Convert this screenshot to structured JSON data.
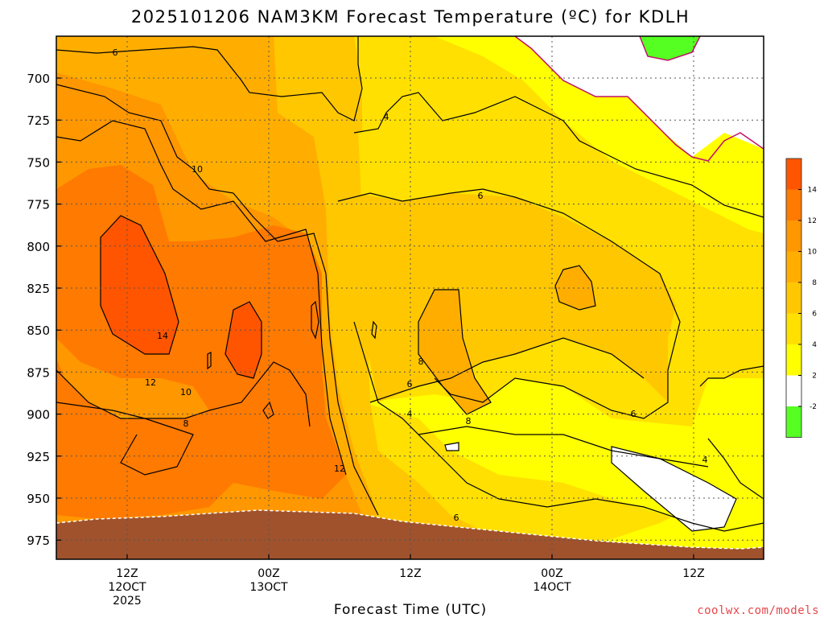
{
  "chart_data": {
    "type": "heatmap",
    "title": "2025101206 NAM3KM Forecast Temperature (ºC) for KDLH",
    "xlabel": "Forecast Time (UTC)",
    "credit": "coolwx.com/models",
    "y_ticks": [
      "700",
      "725",
      "750",
      "775",
      "800",
      "825",
      "850",
      "875",
      "900",
      "925",
      "950",
      "975"
    ],
    "x_ticks": [
      {
        "time": "12Z",
        "line2": "12OCT",
        "line3": "2025"
      },
      {
        "time": "00Z",
        "line2": "13OCT",
        "line3": ""
      },
      {
        "time": "12Z",
        "line2": "",
        "line3": ""
      },
      {
        "time": "00Z",
        "line2": "14OCT",
        "line3": ""
      },
      {
        "time": "12Z",
        "line2": "",
        "line3": ""
      }
    ],
    "color_scale": {
      "labels": [
        "14",
        "12",
        "10",
        "8",
        "6",
        "4",
        "2",
        "-2"
      ],
      "colors": [
        "#ff5500",
        "#ff7a00",
        "#ff9700",
        "#ffae00",
        "#ffc700",
        "#ffe000",
        "#ffff00",
        "#ffffff",
        "#55ff22"
      ]
    },
    "contour_labels": [
      "6",
      "4",
      "10",
      "6",
      "14",
      "8",
      "12",
      "10",
      "8",
      "6",
      "4",
      "8",
      "12",
      "6",
      "6",
      "4"
    ],
    "colors": {
      "terrain": "#a0522d",
      "zero_line": "#c0106b",
      "grid": "#555555"
    }
  }
}
